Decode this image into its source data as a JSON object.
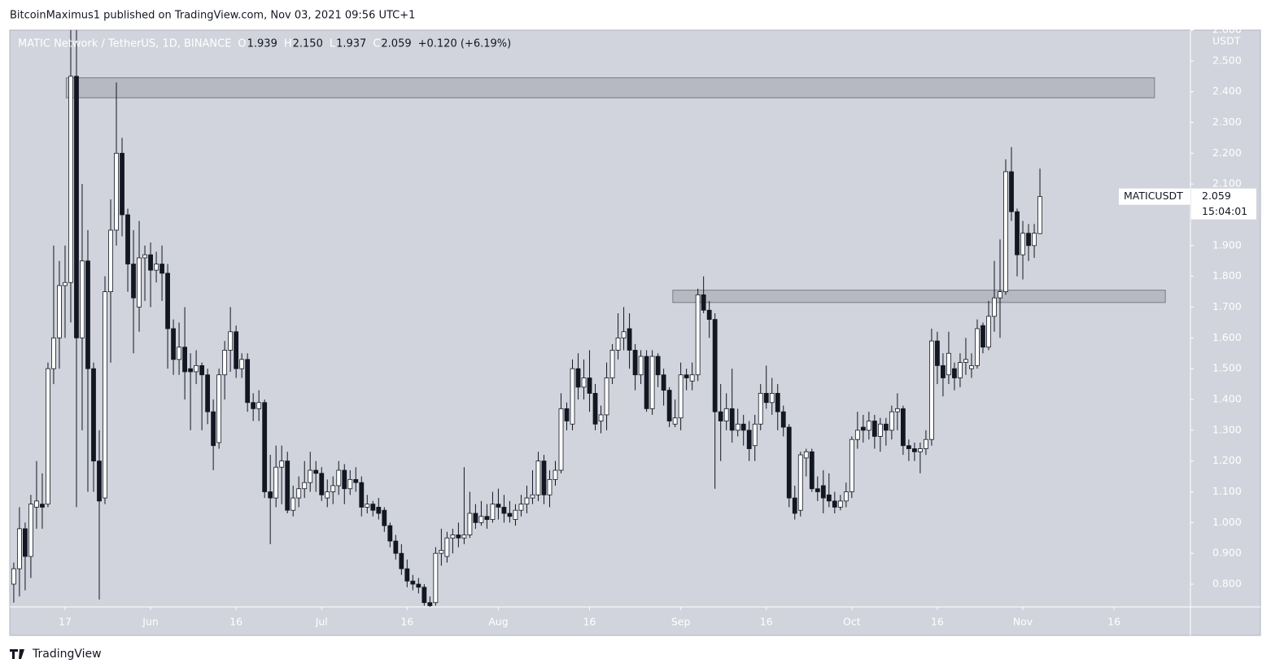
{
  "header": "BitcoinMaximus1 published on TradingView.com, Nov 03, 2021 09:56 UTC+1",
  "footer": "TradingView",
  "chart_data": {
    "type": "candlestick",
    "title": "MATIC Network / TetherUS, 1D, BINANCE",
    "legend_ohlc": [
      {
        "label": "O",
        "value": "1.939"
      },
      {
        "label": "H",
        "value": "2.150"
      },
      {
        "label": "L",
        "value": "1.937"
      },
      {
        "label": "C",
        "value": "2.059"
      }
    ],
    "change": "+0.120 (+6.19%)",
    "y_unit": "USDT",
    "last_price": {
      "symbol": "MATICUSDT",
      "value": "2.059",
      "countdown": "15:04:01"
    },
    "up_color": "#ffffff",
    "down_color": "#131722",
    "wick_color": "#131722",
    "ylim": [
      0.726,
      2.6
    ],
    "yticks": [
      {
        "value": 0.8,
        "label": "0.800"
      },
      {
        "value": 0.9,
        "label": "0.900"
      },
      {
        "value": 1.0,
        "label": "1.000"
      },
      {
        "value": 1.1,
        "label": "1.100"
      },
      {
        "value": 1.2,
        "label": "1.200"
      },
      {
        "value": 1.3,
        "label": "1.300"
      },
      {
        "value": 1.4,
        "label": "1.400"
      },
      {
        "value": 1.5,
        "label": "1.500"
      },
      {
        "value": 1.6,
        "label": "1.600"
      },
      {
        "value": 1.7,
        "label": "1.700"
      },
      {
        "value": 1.8,
        "label": "1.800"
      },
      {
        "value": 1.9,
        "label": "1.900"
      },
      {
        "value": 2.0,
        "label": "2.000"
      },
      {
        "value": 2.1,
        "label": "2.100"
      },
      {
        "value": 2.2,
        "label": "2.200"
      },
      {
        "value": 2.3,
        "label": "2.300"
      },
      {
        "value": 2.4,
        "label": "2.400"
      },
      {
        "value": 2.5,
        "label": "2.500"
      },
      {
        "value": 2.6,
        "label": "2.600"
      }
    ],
    "xlim": [
      -0.7,
      206.4
    ],
    "xticks": [
      {
        "value": 9,
        "label": "17"
      },
      {
        "value": 24,
        "label": "Jun"
      },
      {
        "value": 39,
        "label": "16"
      },
      {
        "value": 54,
        "label": "Jul"
      },
      {
        "value": 69,
        "label": "16"
      },
      {
        "value": 85,
        "label": "Aug"
      },
      {
        "value": 101,
        "label": "16"
      },
      {
        "value": 117,
        "label": "Sep"
      },
      {
        "value": 132,
        "label": "16"
      },
      {
        "value": 147,
        "label": "Oct"
      },
      {
        "value": 162,
        "label": "16"
      },
      {
        "value": 177,
        "label": "Nov"
      },
      {
        "value": 193,
        "label": "16"
      }
    ],
    "zones": [
      {
        "x": [
          9.2,
          200.1
        ],
        "y": [
          2.38,
          2.445
        ]
      },
      {
        "x": [
          115.6,
          202
        ],
        "y": [
          1.715,
          1.755
        ]
      }
    ],
    "ohlc": [
      [
        0.8,
        0.87,
        0.74,
        0.85
      ],
      [
        0.85,
        1.05,
        0.76,
        0.98
      ],
      [
        0.98,
        1.0,
        0.78,
        0.89
      ],
      [
        0.89,
        1.09,
        0.82,
        1.06
      ],
      [
        1.05,
        1.2,
        0.98,
        1.07
      ],
      [
        1.06,
        1.16,
        0.98,
        1.05
      ],
      [
        1.06,
        1.52,
        1.05,
        1.5
      ],
      [
        1.5,
        1.9,
        1.45,
        1.6
      ],
      [
        1.6,
        1.85,
        1.5,
        1.77
      ],
      [
        1.77,
        1.9,
        1.6,
        1.78
      ],
      [
        1.78,
        2.65,
        1.65,
        2.45
      ],
      [
        2.45,
        2.7,
        1.05,
        1.6
      ],
      [
        1.6,
        2.1,
        1.3,
        1.85
      ],
      [
        1.85,
        1.95,
        1.1,
        1.5
      ],
      [
        1.5,
        1.52,
        1.1,
        1.2
      ],
      [
        1.2,
        1.3,
        0.75,
        1.07
      ],
      [
        1.08,
        1.8,
        1.06,
        1.75
      ],
      [
        1.75,
        2.05,
        1.52,
        1.95
      ],
      [
        1.95,
        2.43,
        1.9,
        2.2
      ],
      [
        2.2,
        2.25,
        1.93,
        2.0
      ],
      [
        2.0,
        2.02,
        1.75,
        1.84
      ],
      [
        1.84,
        1.95,
        1.55,
        1.73
      ],
      [
        1.7,
        1.98,
        1.62,
        1.86
      ],
      [
        1.86,
        1.9,
        1.72,
        1.87
      ],
      [
        1.87,
        1.91,
        1.7,
        1.82
      ],
      [
        1.82,
        1.88,
        1.78,
        1.84
      ],
      [
        1.84,
        1.9,
        1.72,
        1.81
      ],
      [
        1.81,
        1.84,
        1.5,
        1.63
      ],
      [
        1.63,
        1.66,
        1.48,
        1.53
      ],
      [
        1.53,
        1.65,
        1.48,
        1.57
      ],
      [
        1.57,
        1.7,
        1.4,
        1.49
      ],
      [
        1.5,
        1.55,
        1.3,
        1.49
      ],
      [
        1.49,
        1.56,
        1.45,
        1.51
      ],
      [
        1.51,
        1.52,
        1.3,
        1.48
      ],
      [
        1.48,
        1.5,
        1.32,
        1.36
      ],
      [
        1.36,
        1.4,
        1.17,
        1.25
      ],
      [
        1.26,
        1.5,
        1.24,
        1.48
      ],
      [
        1.48,
        1.59,
        1.4,
        1.56
      ],
      [
        1.56,
        1.7,
        1.49,
        1.62
      ],
      [
        1.62,
        1.64,
        1.47,
        1.5
      ],
      [
        1.5,
        1.55,
        1.47,
        1.53
      ],
      [
        1.53,
        1.55,
        1.36,
        1.39
      ],
      [
        1.39,
        1.42,
        1.33,
        1.37
      ],
      [
        1.37,
        1.43,
        1.33,
        1.39
      ],
      [
        1.39,
        1.4,
        1.08,
        1.1
      ],
      [
        1.1,
        1.22,
        0.93,
        1.08
      ],
      [
        1.08,
        1.25,
        1.05,
        1.18
      ],
      [
        1.18,
        1.25,
        1.06,
        1.2
      ],
      [
        1.2,
        1.23,
        1.03,
        1.04
      ],
      [
        1.04,
        1.12,
        1.02,
        1.08
      ],
      [
        1.08,
        1.15,
        1.05,
        1.11
      ],
      [
        1.11,
        1.2,
        1.08,
        1.13
      ],
      [
        1.13,
        1.23,
        1.1,
        1.17
      ],
      [
        1.17,
        1.2,
        1.1,
        1.16
      ],
      [
        1.16,
        1.18,
        1.07,
        1.09
      ],
      [
        1.08,
        1.14,
        1.05,
        1.1
      ],
      [
        1.1,
        1.15,
        1.06,
        1.12
      ],
      [
        1.12,
        1.2,
        1.09,
        1.17
      ],
      [
        1.17,
        1.19,
        1.06,
        1.11
      ],
      [
        1.11,
        1.17,
        1.09,
        1.14
      ],
      [
        1.14,
        1.18,
        1.1,
        1.13
      ],
      [
        1.13,
        1.15,
        1.02,
        1.05
      ],
      [
        1.05,
        1.09,
        1.03,
        1.06
      ],
      [
        1.06,
        1.07,
        1.02,
        1.04
      ],
      [
        1.05,
        1.08,
        1.01,
        1.03
      ],
      [
        1.04,
        1.05,
        0.97,
        0.99
      ],
      [
        0.99,
        1.0,
        0.92,
        0.94
      ],
      [
        0.94,
        0.96,
        0.88,
        0.9
      ],
      [
        0.9,
        0.93,
        0.83,
        0.85
      ],
      [
        0.85,
        0.88,
        0.79,
        0.81
      ],
      [
        0.81,
        0.83,
        0.78,
        0.8
      ],
      [
        0.8,
        0.82,
        0.77,
        0.79
      ],
      [
        0.79,
        0.8,
        0.73,
        0.74
      ],
      [
        0.74,
        0.76,
        0.72,
        0.73
      ],
      [
        0.74,
        0.92,
        0.73,
        0.9
      ],
      [
        0.9,
        0.98,
        0.86,
        0.91
      ],
      [
        0.89,
        0.97,
        0.87,
        0.95
      ],
      [
        0.95,
        0.98,
        0.9,
        0.96
      ],
      [
        0.96,
        1.0,
        0.92,
        0.95
      ],
      [
        0.95,
        1.18,
        0.93,
        0.96
      ],
      [
        0.96,
        1.1,
        0.95,
        1.03
      ],
      [
        1.03,
        1.06,
        0.98,
        1.0
      ],
      [
        1.0,
        1.07,
        0.99,
        1.02
      ],
      [
        1.02,
        1.06,
        0.98,
        1.01
      ],
      [
        1.01,
        1.1,
        1.0,
        1.06
      ],
      [
        1.06,
        1.11,
        1.01,
        1.05
      ],
      [
        1.05,
        1.09,
        1.0,
        1.03
      ],
      [
        1.03,
        1.07,
        1.0,
        1.02
      ],
      [
        1.01,
        1.06,
        0.99,
        1.04
      ],
      [
        1.04,
        1.09,
        1.02,
        1.06
      ],
      [
        1.06,
        1.12,
        1.03,
        1.08
      ],
      [
        1.08,
        1.17,
        1.06,
        1.09
      ],
      [
        1.09,
        1.23,
        1.07,
        1.2
      ],
      [
        1.2,
        1.22,
        1.06,
        1.09
      ],
      [
        1.09,
        1.17,
        1.05,
        1.14
      ],
      [
        1.14,
        1.2,
        1.12,
        1.17
      ],
      [
        1.17,
        1.42,
        1.16,
        1.37
      ],
      [
        1.37,
        1.39,
        1.3,
        1.33
      ],
      [
        1.32,
        1.53,
        1.3,
        1.5
      ],
      [
        1.5,
        1.55,
        1.4,
        1.44
      ],
      [
        1.44,
        1.53,
        1.4,
        1.47
      ],
      [
        1.47,
        1.56,
        1.36,
        1.42
      ],
      [
        1.42,
        1.45,
        1.3,
        1.32
      ],
      [
        1.33,
        1.38,
        1.29,
        1.35
      ],
      [
        1.35,
        1.52,
        1.3,
        1.47
      ],
      [
        1.47,
        1.58,
        1.45,
        1.56
      ],
      [
        1.56,
        1.68,
        1.53,
        1.6
      ],
      [
        1.6,
        1.7,
        1.56,
        1.62
      ],
      [
        1.63,
        1.68,
        1.5,
        1.56
      ],
      [
        1.56,
        1.58,
        1.43,
        1.48
      ],
      [
        1.48,
        1.56,
        1.45,
        1.54
      ],
      [
        1.54,
        1.56,
        1.36,
        1.37
      ],
      [
        1.37,
        1.56,
        1.35,
        1.54
      ],
      [
        1.54,
        1.55,
        1.44,
        1.48
      ],
      [
        1.48,
        1.5,
        1.38,
        1.43
      ],
      [
        1.43,
        1.44,
        1.31,
        1.33
      ],
      [
        1.32,
        1.4,
        1.31,
        1.34
      ],
      [
        1.34,
        1.52,
        1.3,
        1.48
      ],
      [
        1.48,
        1.5,
        1.43,
        1.47
      ],
      [
        1.46,
        1.52,
        1.43,
        1.48
      ],
      [
        1.48,
        1.76,
        1.46,
        1.74
      ],
      [
        1.74,
        1.8,
        1.68,
        1.69
      ],
      [
        1.69,
        1.72,
        1.6,
        1.66
      ],
      [
        1.66,
        1.68,
        1.11,
        1.36
      ],
      [
        1.36,
        1.45,
        1.2,
        1.33
      ],
      [
        1.33,
        1.42,
        1.3,
        1.37
      ],
      [
        1.37,
        1.5,
        1.26,
        1.3
      ],
      [
        1.3,
        1.37,
        1.28,
        1.32
      ],
      [
        1.32,
        1.35,
        1.25,
        1.3
      ],
      [
        1.3,
        1.33,
        1.2,
        1.24
      ],
      [
        1.25,
        1.35,
        1.2,
        1.32
      ],
      [
        1.32,
        1.45,
        1.3,
        1.42
      ],
      [
        1.42,
        1.51,
        1.37,
        1.39
      ],
      [
        1.39,
        1.47,
        1.35,
        1.42
      ],
      [
        1.42,
        1.45,
        1.3,
        1.36
      ],
      [
        1.36,
        1.38,
        1.28,
        1.31
      ],
      [
        1.31,
        1.32,
        1.05,
        1.08
      ],
      [
        1.08,
        1.12,
        1.01,
        1.03
      ],
      [
        1.04,
        1.23,
        1.02,
        1.22
      ],
      [
        1.21,
        1.24,
        1.15,
        1.23
      ],
      [
        1.23,
        1.24,
        1.1,
        1.11
      ],
      [
        1.11,
        1.15,
        1.07,
        1.1
      ],
      [
        1.12,
        1.17,
        1.03,
        1.08
      ],
      [
        1.09,
        1.16,
        1.05,
        1.07
      ],
      [
        1.07,
        1.1,
        1.03,
        1.05
      ],
      [
        1.05,
        1.09,
        1.04,
        1.07
      ],
      [
        1.07,
        1.13,
        1.05,
        1.1
      ],
      [
        1.1,
        1.28,
        1.08,
        1.27
      ],
      [
        1.27,
        1.36,
        1.24,
        1.3
      ],
      [
        1.31,
        1.35,
        1.26,
        1.3
      ],
      [
        1.3,
        1.36,
        1.27,
        1.33
      ],
      [
        1.33,
        1.35,
        1.24,
        1.28
      ],
      [
        1.28,
        1.34,
        1.23,
        1.32
      ],
      [
        1.32,
        1.34,
        1.25,
        1.3
      ],
      [
        1.3,
        1.38,
        1.27,
        1.36
      ],
      [
        1.36,
        1.42,
        1.3,
        1.37
      ],
      [
        1.37,
        1.38,
        1.22,
        1.25
      ],
      [
        1.25,
        1.27,
        1.2,
        1.24
      ],
      [
        1.24,
        1.26,
        1.2,
        1.23
      ],
      [
        1.23,
        1.26,
        1.16,
        1.24
      ],
      [
        1.24,
        1.3,
        1.22,
        1.27
      ],
      [
        1.27,
        1.63,
        1.25,
        1.59
      ],
      [
        1.59,
        1.62,
        1.45,
        1.51
      ],
      [
        1.51,
        1.55,
        1.41,
        1.47
      ],
      [
        1.48,
        1.62,
        1.45,
        1.55
      ],
      [
        1.5,
        1.52,
        1.43,
        1.47
      ],
      [
        1.47,
        1.55,
        1.44,
        1.52
      ],
      [
        1.52,
        1.6,
        1.48,
        1.53
      ],
      [
        1.5,
        1.55,
        1.47,
        1.51
      ],
      [
        1.51,
        1.66,
        1.5,
        1.63
      ],
      [
        1.64,
        1.65,
        1.55,
        1.57
      ],
      [
        1.57,
        1.72,
        1.56,
        1.67
      ],
      [
        1.67,
        1.85,
        1.62,
        1.73
      ],
      [
        1.73,
        1.92,
        1.6,
        1.75
      ],
      [
        1.75,
        2.18,
        1.74,
        2.14
      ],
      [
        2.14,
        2.22,
        1.98,
        2.01
      ],
      [
        2.01,
        2.02,
        1.8,
        1.87
      ],
      [
        1.87,
        1.98,
        1.79,
        1.94
      ],
      [
        1.94,
        1.97,
        1.85,
        1.9
      ],
      [
        1.9,
        1.97,
        1.86,
        1.94
      ],
      [
        1.939,
        2.15,
        1.937,
        2.059
      ]
    ]
  }
}
